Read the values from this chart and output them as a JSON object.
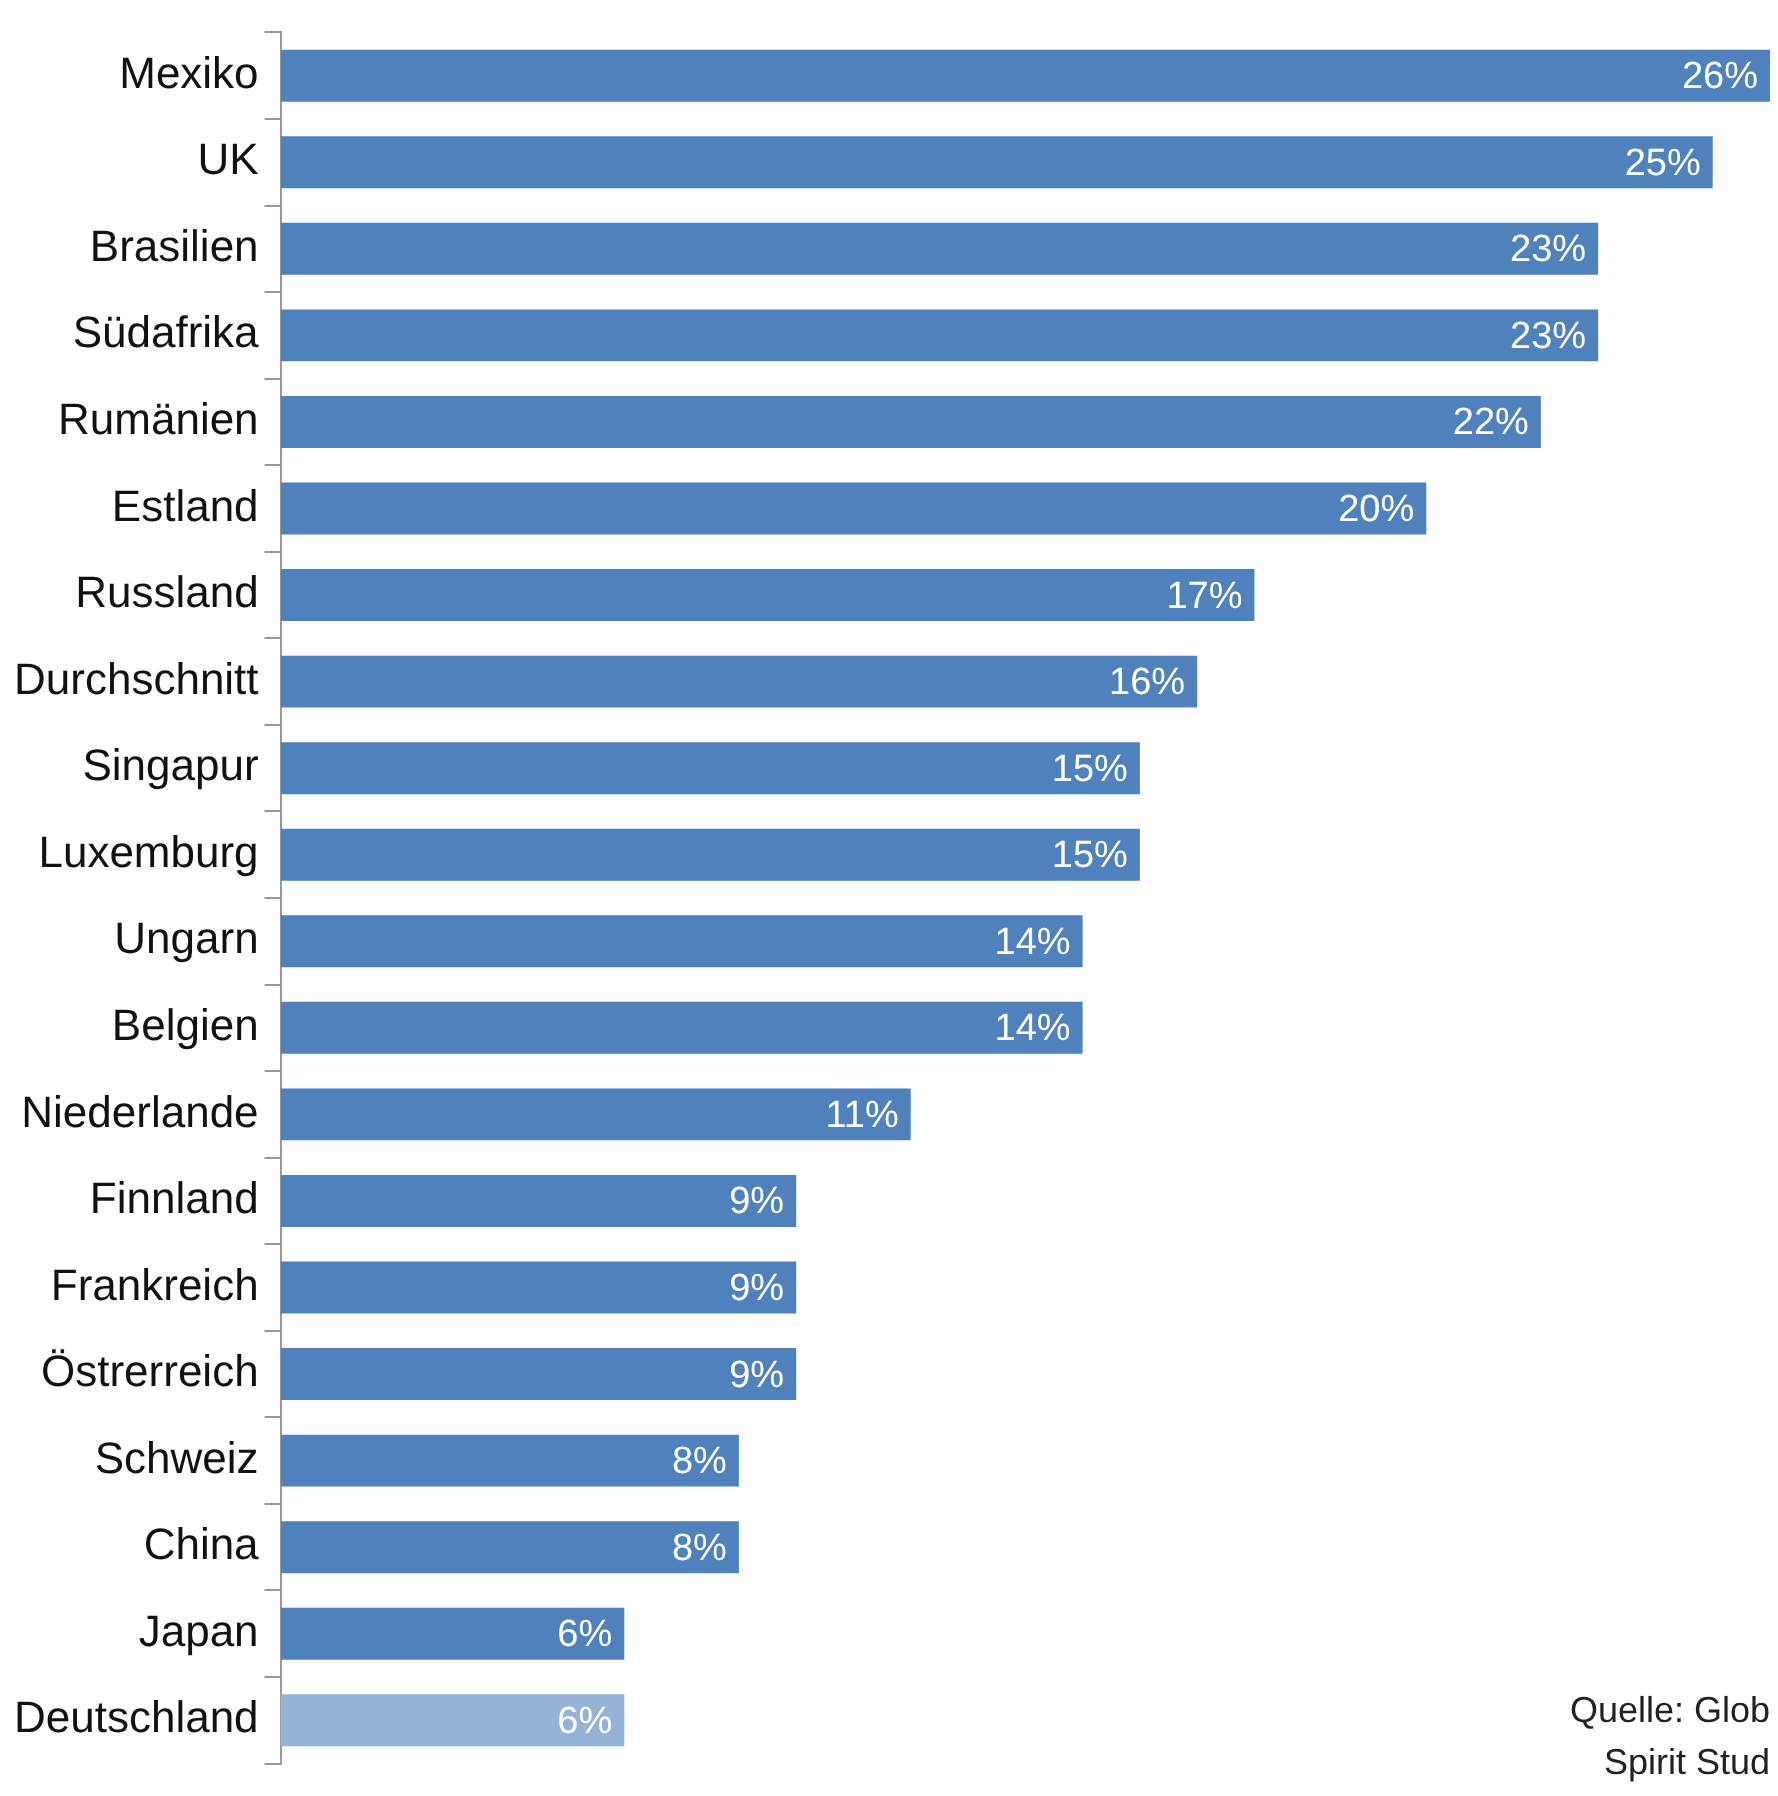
{
  "chart_data": {
    "type": "bar",
    "orientation": "horizontal",
    "tick_labels": "y",
    "categories": [
      "Mexiko",
      "UK",
      "Brasilien",
      "Südafrika",
      "Rumänien",
      "Estland",
      "Russland",
      "Durchschnitt",
      "Singapur",
      "Luxemburg",
      "Ungarn",
      "Belgien",
      "Niederlande",
      "Finnland",
      "Frankreich",
      "Östrerreich",
      "Schweiz",
      "China",
      "Japan",
      "Deutschland"
    ],
    "values": [
      26,
      25,
      23,
      23,
      22,
      20,
      17,
      16,
      15,
      15,
      14,
      14,
      11,
      9,
      9,
      9,
      8,
      8,
      6,
      6
    ],
    "value_labels": [
      "26%",
      "25%",
      "23%",
      "23%",
      "22%",
      "20%",
      "17%",
      "16%",
      "15%",
      "15%",
      "14%",
      "14%",
      "11%",
      "9%",
      "9%",
      "9%",
      "8%",
      "8%",
      "6%",
      "6%"
    ],
    "colors": [
      "#4f81bd",
      "#4f81bd",
      "#4f81bd",
      "#4f81bd",
      "#4f81bd",
      "#4f81bd",
      "#4f81bd",
      "#4f81bd",
      "#4f81bd",
      "#4f81bd",
      "#4f81bd",
      "#4f81bd",
      "#4f81bd",
      "#4f81bd",
      "#4f81bd",
      "#4f81bd",
      "#4f81bd",
      "#4f81bd",
      "#4f81bd",
      "#95b3d7"
    ],
    "annotations": [
      "Quelle: Glob",
      "Spirit Stud"
    ]
  }
}
